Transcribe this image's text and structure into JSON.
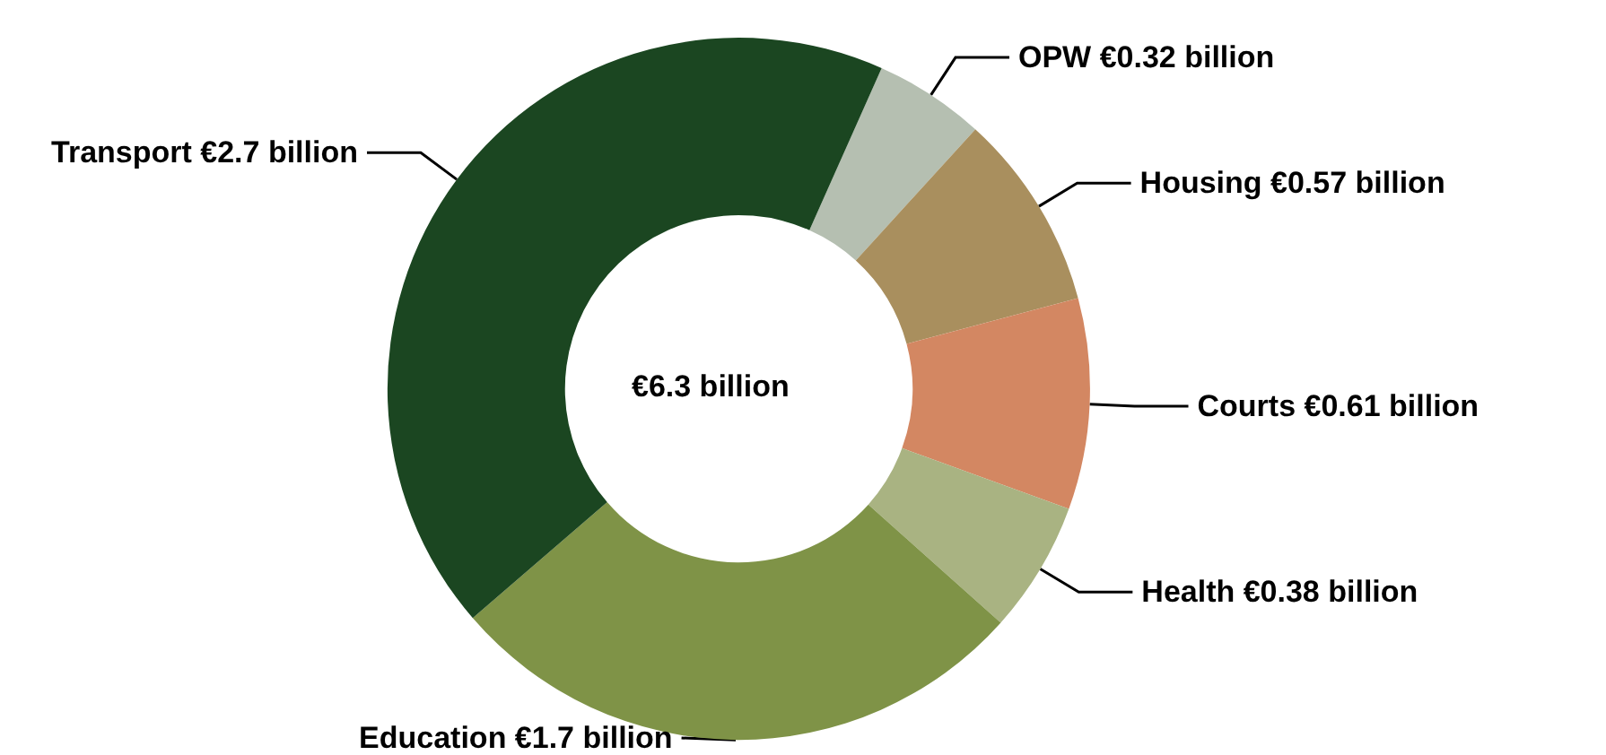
{
  "chart_data": {
    "type": "donut",
    "categories": [
      "OPW",
      "Housing",
      "Courts",
      "Health",
      "Education",
      "Transport"
    ],
    "values": [
      0.32,
      0.57,
      0.61,
      0.38,
      1.7,
      2.7
    ],
    "value_labels": [
      "€0.32 billion",
      "€0.57 billion",
      "€0.61 billion",
      "€0.38 billion",
      "€1.7 billion",
      "€2.7 billion"
    ],
    "colors": [
      "#b5bfb1",
      "#a98f5e",
      "#d38762",
      "#a9b382",
      "#7f9347",
      "#1b4621"
    ],
    "annotations": [
      "€6.3 billion"
    ],
    "legend": false
  }
}
